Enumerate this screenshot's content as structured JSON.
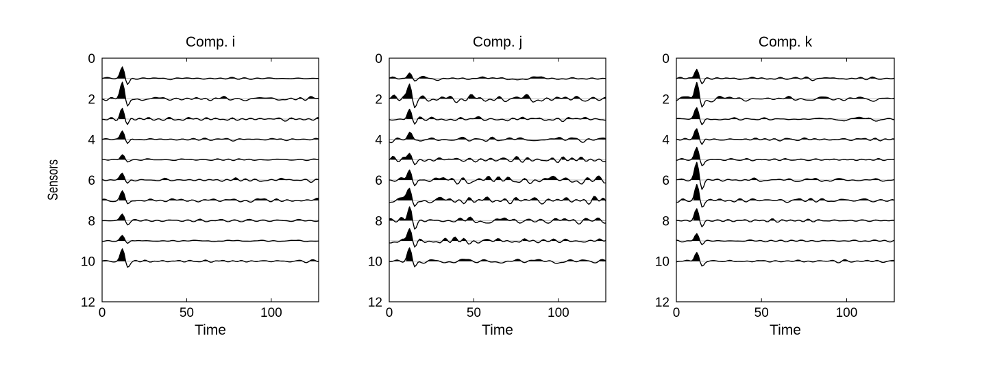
{
  "chart_data": [
    {
      "type": "line",
      "title": "Comp. i",
      "xlabel": "Time",
      "ylabel": "Sensors",
      "xlim": [
        0,
        128
      ],
      "ylim": [
        0,
        12
      ],
      "y_reversed": true,
      "xticks": [
        "0",
        "50",
        "100"
      ],
      "yticks": [
        "0",
        "2",
        "4",
        "6",
        "8",
        "10",
        "12"
      ],
      "sensors": [
        1,
        2,
        3,
        4,
        5,
        6,
        7,
        8,
        9,
        10
      ],
      "event_time": 12,
      "positive_excursions_filled": true,
      "peak_amplitudes": [
        0.6,
        0.8,
        0.5,
        0.5,
        0.25,
        0.35,
        0.4,
        0.3,
        0.3,
        0.6
      ],
      "noise_level": [
        0.05,
        0.12,
        0.08,
        0.07,
        0.05,
        0.08,
        0.1,
        0.07,
        0.04,
        0.06
      ]
    },
    {
      "type": "line",
      "title": "Comp. j",
      "xlabel": "Time",
      "ylabel": "",
      "xlim": [
        0,
        128
      ],
      "ylim": [
        0,
        12
      ],
      "y_reversed": true,
      "xticks": [
        "0",
        "50",
        "100"
      ],
      "yticks": [
        "0",
        "2",
        "4",
        "6",
        "8",
        "10",
        "12"
      ],
      "sensors": [
        1,
        2,
        3,
        4,
        5,
        6,
        7,
        8,
        9,
        10
      ],
      "event_time": 12,
      "positive_excursions_filled": true,
      "peak_amplitudes": [
        0.3,
        0.9,
        0.5,
        0.35,
        0.35,
        0.55,
        0.6,
        0.7,
        0.55,
        0.6
      ],
      "noise_level": [
        0.12,
        0.2,
        0.12,
        0.15,
        0.15,
        0.2,
        0.2,
        0.18,
        0.15,
        0.12
      ]
    },
    {
      "type": "line",
      "title": "Comp. k",
      "xlabel": "Time",
      "ylabel": "",
      "xlim": [
        0,
        128
      ],
      "ylim": [
        0,
        12
      ],
      "y_reversed": true,
      "xticks": [
        "0",
        "50",
        "100"
      ],
      "yticks": [
        "0",
        "2",
        "4",
        "6",
        "8",
        "10",
        "12"
      ],
      "sensors": [
        1,
        2,
        3,
        4,
        5,
        6,
        7,
        8,
        9,
        10
      ],
      "event_time": 12,
      "positive_excursions_filled": true,
      "peak_amplitudes": [
        0.5,
        0.9,
        0.55,
        0.55,
        0.6,
        0.9,
        0.8,
        0.55,
        0.35,
        0.4
      ],
      "noise_level": [
        0.08,
        0.12,
        0.08,
        0.06,
        0.06,
        0.08,
        0.1,
        0.08,
        0.05,
        0.06
      ]
    }
  ]
}
